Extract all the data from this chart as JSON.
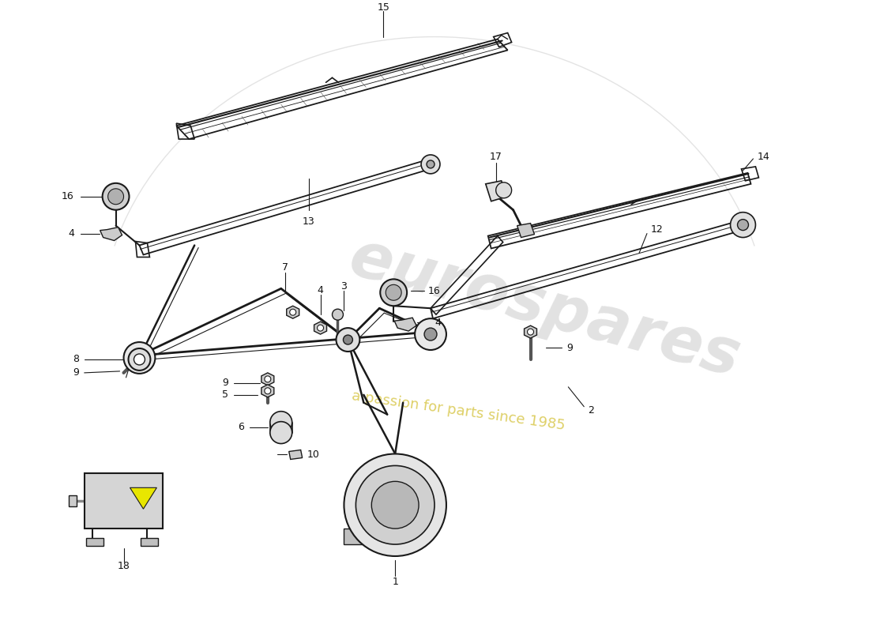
{
  "bg_color": "#ffffff",
  "line_color": "#1a1a1a",
  "label_color": "#111111",
  "watermark_color": "#c8c8c8",
  "watermark_yellow": "#d4b800",
  "figsize": [
    11.0,
    8.0
  ],
  "dpi": 100
}
